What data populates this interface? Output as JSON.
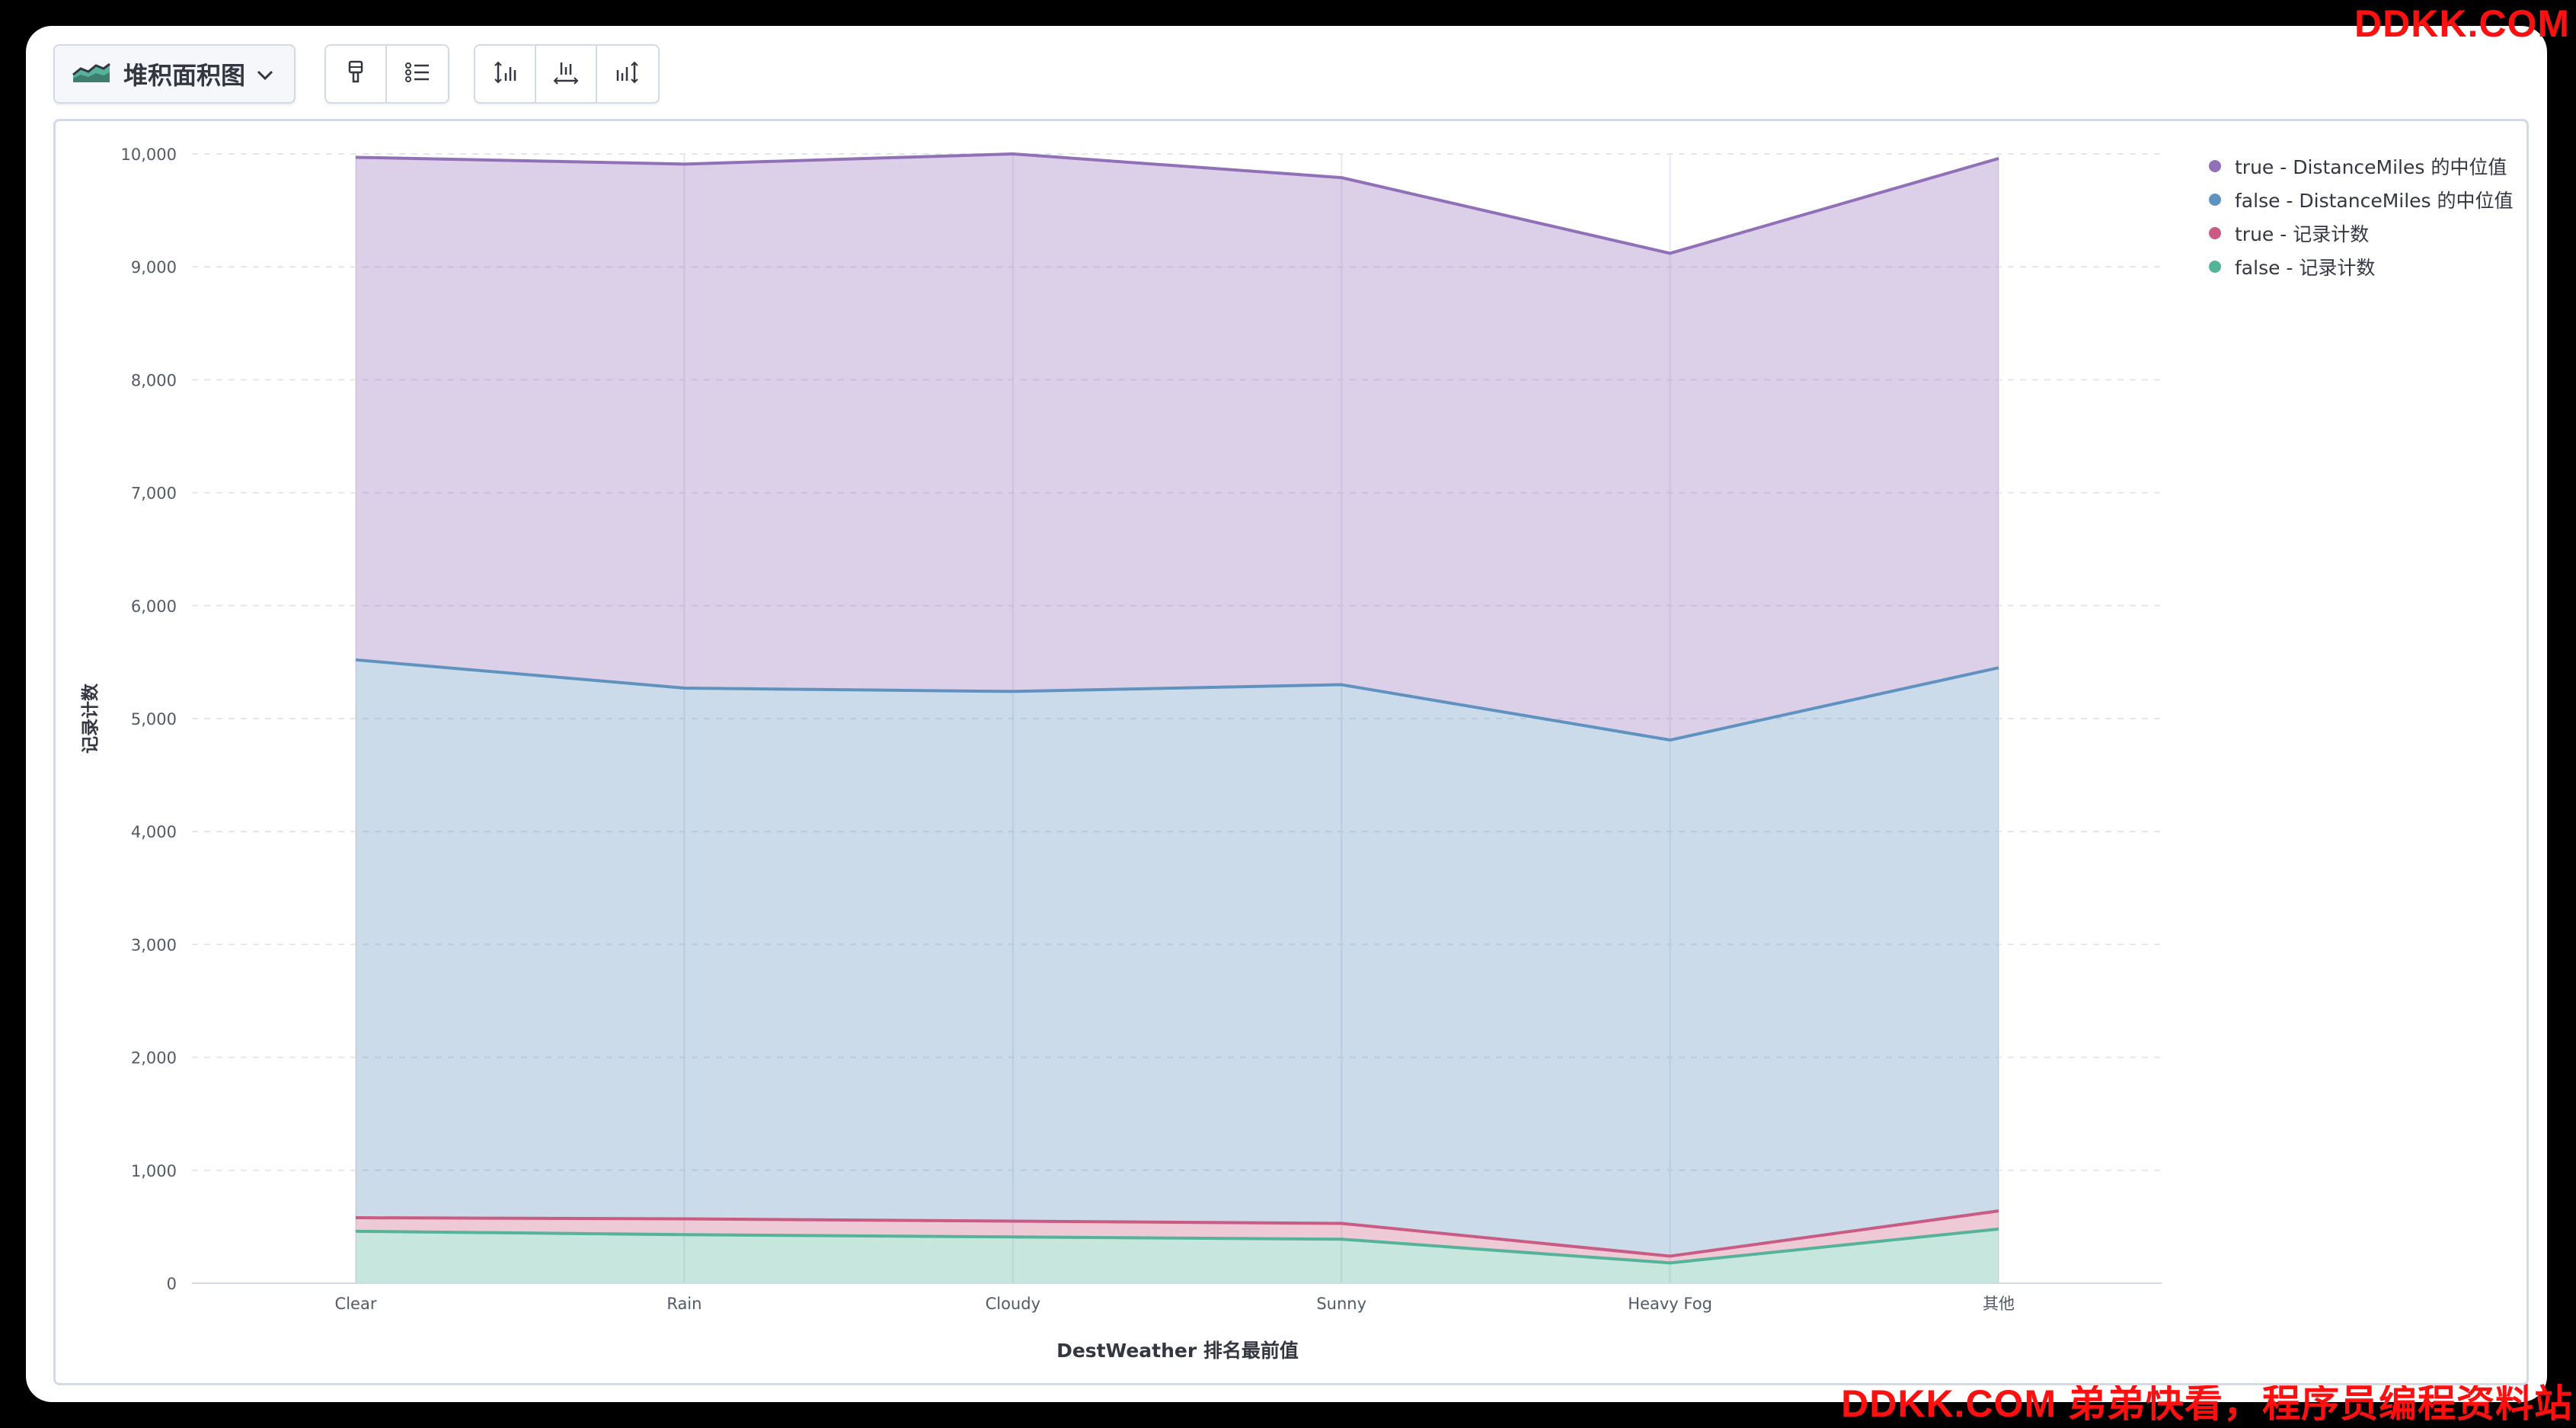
{
  "watermark": {
    "top": "DDKK.COM",
    "bottom": "DDKK.COM 弟弟快看，程序员编程资料站"
  },
  "toolbar": {
    "chart_type_label": "堆积面积图",
    "chart_type_icon": "area-chart-icon",
    "group1": [
      "paint-brush-icon",
      "legend-list-icon"
    ],
    "group2": [
      "left-axis-icon",
      "bottom-axis-icon",
      "right-axis-icon"
    ]
  },
  "colors": {
    "true_distance": "#9170b8",
    "false_distance": "#6092c0",
    "true_count": "#ca5b83",
    "false_count": "#54b399"
  },
  "chart_data": {
    "type": "area",
    "stacked": true,
    "title": "",
    "xlabel": "DestWeather 排名最前值",
    "ylabel": "记录计数",
    "ylim": [
      0,
      10000
    ],
    "yticks": [
      "0",
      "1,000",
      "2,000",
      "3,000",
      "4,000",
      "5,000",
      "6,000",
      "7,000",
      "8,000",
      "9,000",
      "10,000"
    ],
    "categories": [
      "Clear",
      "Rain",
      "Cloudy",
      "Sunny",
      "Heavy Fog",
      "其他"
    ],
    "grid": true,
    "legend_position": "top-right",
    "series": [
      {
        "name": "false - 记录计数",
        "color_key": "false_count",
        "values": [
          460,
          430,
          410,
          390,
          180,
          480
        ]
      },
      {
        "name": "true - 记录计数",
        "color_key": "true_count",
        "values": [
          120,
          140,
          140,
          140,
          60,
          160
        ]
      },
      {
        "name": "false - DistanceMiles 的中位值",
        "color_key": "false_distance",
        "values": [
          4940,
          4700,
          4690,
          4770,
          4570,
          4810
        ]
      },
      {
        "name": "true - DistanceMiles 的中位值",
        "color_key": "true_distance",
        "values": [
          4450,
          4640,
          4760,
          4490,
          4310,
          4510
        ]
      }
    ],
    "legend_order": [
      {
        "name": "true - DistanceMiles 的中位值",
        "color_key": "true_distance"
      },
      {
        "name": "false - DistanceMiles 的中位值",
        "color_key": "false_distance"
      },
      {
        "name": "true - 记录计数",
        "color_key": "true_count"
      },
      {
        "name": "false - 记录计数",
        "color_key": "false_count"
      }
    ]
  }
}
